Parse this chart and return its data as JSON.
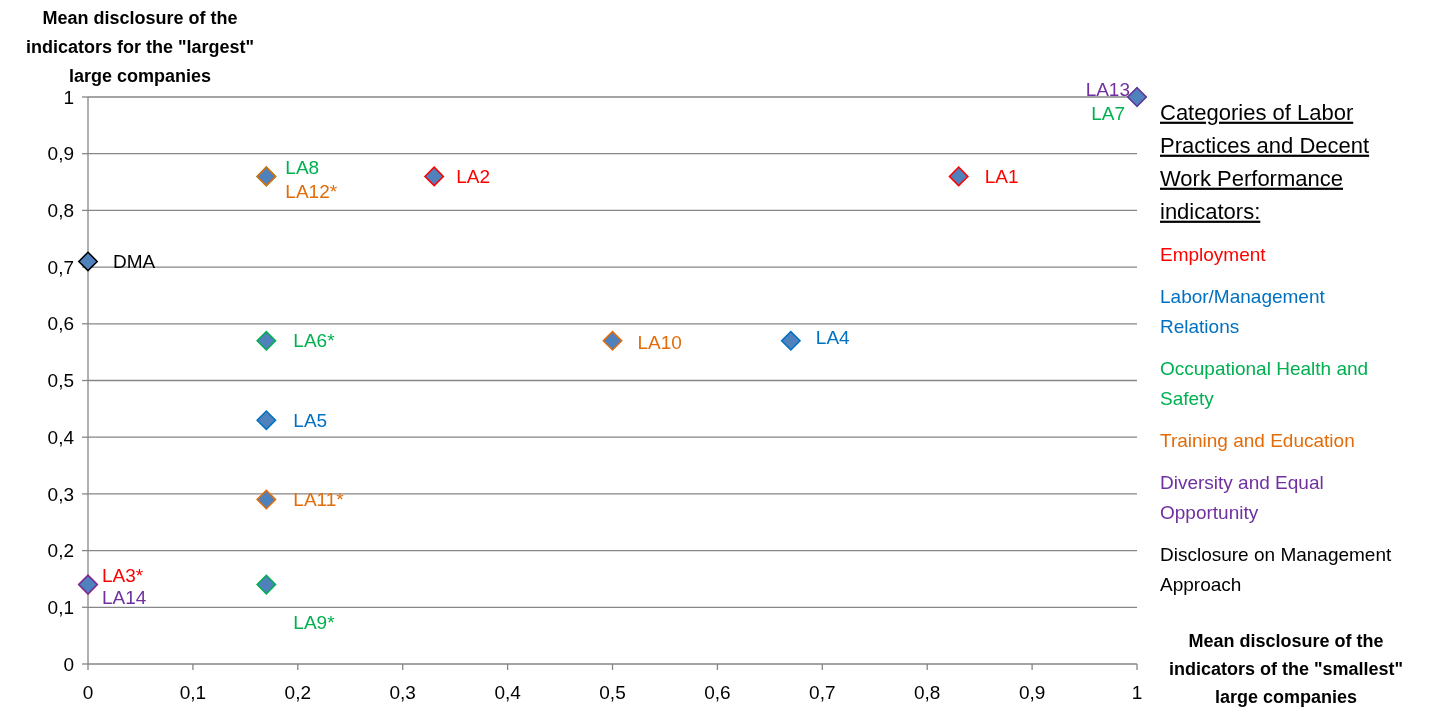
{
  "chart_data": {
    "type": "scatter",
    "xlabel": "Mean disclosure of the indicators of the \"smallest\" large companies",
    "ylabel": "Mean disclosure of the indicators for the \"largest\" large companies",
    "legend_title": "Categories of Labor Practices and Decent Work Performance indicators:",
    "xlim": [
      0,
      1
    ],
    "ylim": [
      0,
      1
    ],
    "xticks": [
      {
        "value": 0,
        "label": "0"
      },
      {
        "value": 0.1,
        "label": "0,1"
      },
      {
        "value": 0.2,
        "label": "0,2"
      },
      {
        "value": 0.3,
        "label": "0,3"
      },
      {
        "value": 0.4,
        "label": "0,4"
      },
      {
        "value": 0.5,
        "label": "0,5"
      },
      {
        "value": 0.6,
        "label": "0,6"
      },
      {
        "value": 0.7,
        "label": "0,7"
      },
      {
        "value": 0.8,
        "label": "0,8"
      },
      {
        "value": 0.9,
        "label": "0,9"
      },
      {
        "value": 1,
        "label": "1"
      }
    ],
    "yticks": [
      {
        "value": 0,
        "label": "0"
      },
      {
        "value": 0.1,
        "label": "0,1"
      },
      {
        "value": 0.2,
        "label": "0,2"
      },
      {
        "value": 0.3,
        "label": "0,3"
      },
      {
        "value": 0.4,
        "label": "0,4"
      },
      {
        "value": 0.5,
        "label": "0,5"
      },
      {
        "value": 0.6,
        "label": "0,6"
      },
      {
        "value": 0.7,
        "label": "0,7"
      },
      {
        "value": 0.8,
        "label": "0,8"
      },
      {
        "value": 0.9,
        "label": "0,9"
      },
      {
        "value": 1,
        "label": "1"
      }
    ],
    "grid": "y",
    "legend": "right",
    "marker": "diamond",
    "series": [
      {
        "name": "Employment",
        "color": "#ff0000",
        "colors": [
          "#4f81bd",
          "#4f81bd",
          "#4f81bd"
        ],
        "x": [
          0.83,
          0.33,
          0
        ],
        "values": [
          0.86,
          0.86,
          0.14
        ],
        "value_labels": [
          "LA1",
          "LA2",
          "LA3*"
        ]
      },
      {
        "name": "Labor/Management Relations",
        "color": "#0070c0",
        "colors": [
          "#4f81bd",
          "#4f81bd"
        ],
        "x": [
          0.67,
          0.17
        ],
        "values": [
          0.57,
          0.43
        ],
        "value_labels": [
          "LA4",
          "LA5"
        ]
      },
      {
        "name": "Occupational Health and Safety",
        "color": "#00b050",
        "colors": [
          "#4f81bd",
          "#4f81bd",
          "#4f81bd",
          "#4f81bd"
        ],
        "x": [
          0.17,
          1,
          0.17,
          0.17
        ],
        "values": [
          0.57,
          1,
          0.86,
          0.14
        ],
        "value_labels": [
          "LA6*",
          "LA7",
          "LA8",
          "LA9*"
        ]
      },
      {
        "name": "Training and Education",
        "color": "#e36c09",
        "colors": [
          "#4f81bd",
          "#4f81bd",
          "#4f81bd"
        ],
        "x": [
          0.5,
          0.17,
          0.17
        ],
        "values": [
          0.57,
          0.29,
          0.86
        ],
        "value_labels": [
          "LA10",
          "LA11*",
          "LA12*"
        ]
      },
      {
        "name": "Diversity and Equal Opportunity",
        "color": "#7030a0",
        "colors": [
          "#4f81bd",
          "#4f81bd"
        ],
        "x": [
          1,
          0
        ],
        "values": [
          1,
          0.14
        ],
        "value_labels": [
          "LA13",
          "LA14"
        ]
      },
      {
        "name": "Disclosure on Management Approach",
        "color": "#000000",
        "colors": [
          "#4f81bd"
        ],
        "x": [
          0
        ],
        "values": [
          0.71
        ],
        "value_labels": [
          "DMA"
        ]
      }
    ]
  }
}
